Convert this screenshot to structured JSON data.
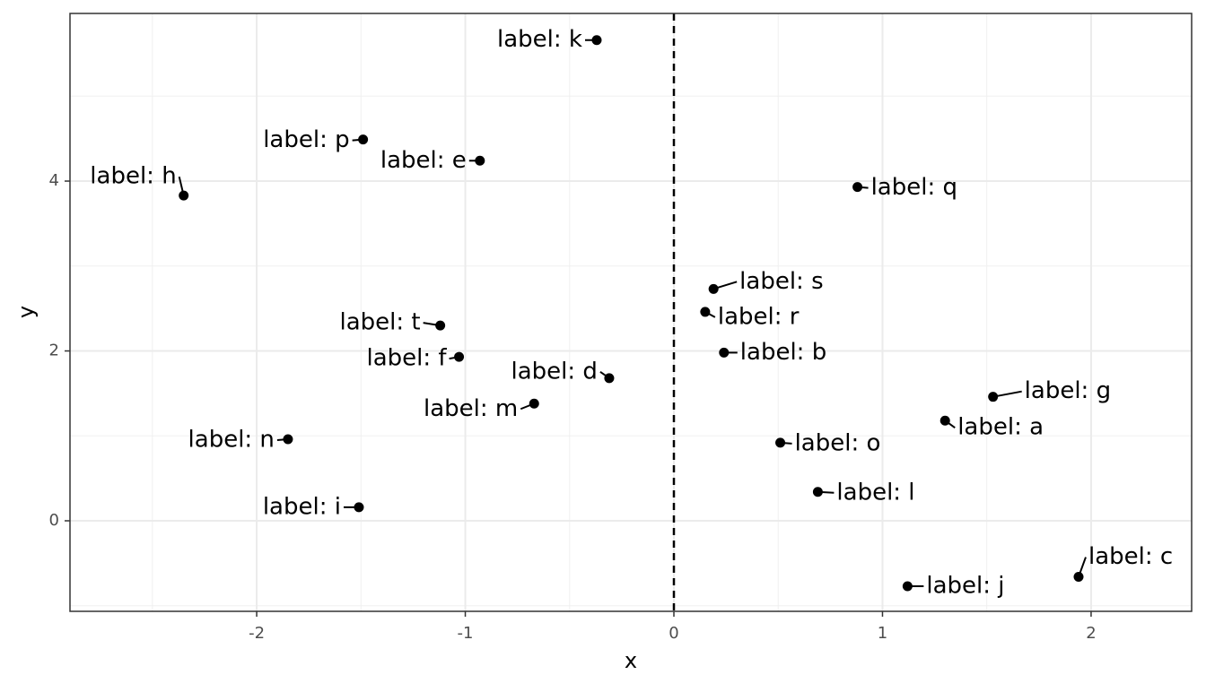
{
  "chart_data": {
    "type": "scatter",
    "x_label": "x",
    "y_label": "y",
    "labels": [
      "label: k",
      "label: p",
      "label: e",
      "label: h",
      "label: q",
      "label: s",
      "label: r",
      "label: t",
      "label: f",
      "label: b",
      "label: d",
      "label: m",
      "label: g",
      "label: a",
      "label: n",
      "label: o",
      "label: l",
      "label: i",
      "label: j",
      "label: c"
    ],
    "x": [
      -0.37,
      -1.49,
      -0.93,
      -2.35,
      0.88,
      0.19,
      0.15,
      -1.12,
      -1.03,
      0.24,
      -0.31,
      -0.67,
      1.53,
      1.3,
      -1.85,
      0.51,
      0.69,
      -1.51,
      1.12,
      1.94
    ],
    "y": [
      5.66,
      4.49,
      4.24,
      3.83,
      3.93,
      2.73,
      2.46,
      2.3,
      1.93,
      1.98,
      1.68,
      1.38,
      1.46,
      1.18,
      0.96,
      0.92,
      0.34,
      0.16,
      -0.77,
      -0.66
    ],
    "color": "#000000",
    "vline": 0,
    "xlim": [
      -2.895,
      2.482
    ],
    "ylim": [
      -1.066,
      5.974
    ],
    "xticks": [
      -2,
      -1,
      0,
      1,
      2
    ],
    "yticks": [
      0,
      2,
      4
    ],
    "grid": true
  }
}
